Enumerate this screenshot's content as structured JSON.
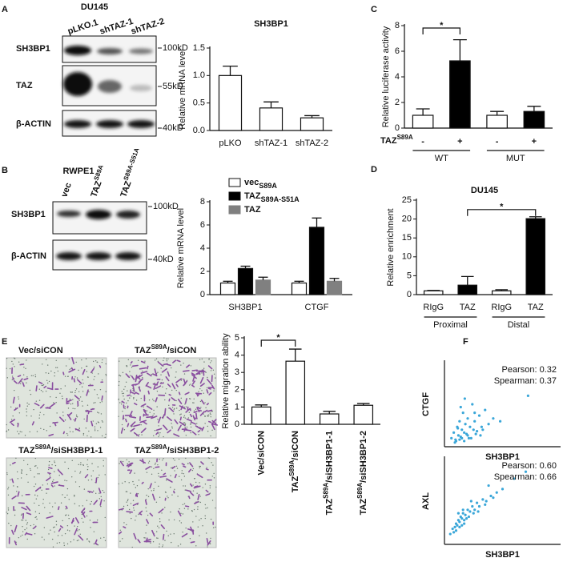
{
  "figure": {
    "letters": [
      "A",
      "B",
      "C",
      "D",
      "E",
      "F"
    ],
    "blot_A": {
      "cell_line": "DU145",
      "lanes": [
        "pLKO.1",
        "shTAZ-1",
        "shTAZ-2"
      ],
      "rows": [
        "SH3BP1",
        "TAZ",
        "β-ACTIN"
      ],
      "markers": [
        "100kD",
        "55kD",
        "40kD"
      ]
    },
    "blot_B": {
      "cell_line": "RWPE1",
      "lanes": [
        [
          "vec"
        ],
        [
          "TAZ",
          "S89A"
        ],
        [
          "TAZ",
          "S89A-S51A"
        ]
      ],
      "rows": [
        "SH3BP1",
        "β-ACTIN"
      ],
      "markers": [
        "100kD",
        "40kD"
      ]
    },
    "micrographs": [
      [
        "Vec/siCON"
      ],
      [
        "TAZ",
        "S89A",
        "/siCON"
      ],
      [
        "TAZ",
        "S89A",
        "/siSH3BP1-1"
      ],
      [
        "TAZ",
        "S89A",
        "/siSH3BP1-2"
      ]
    ]
  },
  "chart_data": [
    {
      "type": "bar",
      "title": "SH3BP1",
      "y_label": "Relative mRNA level",
      "categories": [
        "pLKO",
        "shTAZ-1",
        "shTAZ-2"
      ],
      "values": [
        1.0,
        0.41,
        0.23
      ],
      "errors": [
        0.17,
        0.11,
        0.04
      ],
      "colors": [
        "#ffffff",
        "#ffffff",
        "#ffffff"
      ],
      "ylim": [
        0,
        1.5
      ],
      "yticks": [
        {
          "value": 0,
          "label": "0.0"
        },
        {
          "value": 0.5,
          "label": "0.5"
        },
        {
          "value": 1,
          "label": "1.0"
        },
        {
          "value": 1.5,
          "label": "1.5"
        }
      ]
    },
    {
      "type": "grouped_bar",
      "y_label": "Relative mRNA level",
      "categories": [
        "SH3BP1",
        "CTGF"
      ],
      "series": [
        {
          "name": "vec",
          "subscript": "S89A",
          "color": "#ffffff",
          "values": [
            1.0,
            1.0
          ],
          "errors": [
            0.15,
            0.15
          ]
        },
        {
          "name": "TAZ",
          "subscript": "S89A-S51A",
          "color": "#000000",
          "values": [
            2.25,
            5.8
          ],
          "errors": [
            0.2,
            0.8
          ]
        },
        {
          "name": "TAZ",
          "color": "#808080",
          "values": [
            1.25,
            1.15
          ],
          "errors": [
            0.25,
            0.25
          ]
        }
      ],
      "ylim": [
        0,
        8
      ],
      "yticks": [
        0,
        2,
        4,
        6,
        8
      ]
    },
    {
      "type": "bar",
      "y_label": "Relative luciferase activity",
      "x_label": [
        "TAZ",
        "S89A"
      ],
      "categories": [
        "-",
        "+",
        "-",
        "+"
      ],
      "groups": [
        "WT",
        "MUT"
      ],
      "values": [
        1.0,
        5.25,
        1.0,
        1.3
      ],
      "errors": [
        0.5,
        1.65,
        0.3,
        0.4
      ],
      "colors": [
        "#ffffff",
        "#000000",
        "#ffffff",
        "#000000"
      ],
      "annotation": "*",
      "ylim": [
        0,
        8
      ],
      "yticks": [
        0,
        2,
        4,
        6,
        8
      ]
    },
    {
      "type": "bar",
      "title": "DU145",
      "y_label": "Relative enrichment",
      "categories": [
        "RIgG",
        "TAZ",
        "RIgG",
        "TAZ"
      ],
      "groups": [
        "Proximal",
        "Distal"
      ],
      "values": [
        1.0,
        2.5,
        1.0,
        20.1
      ],
      "errors": [
        0.1,
        2.3,
        0.3,
        0.5
      ],
      "colors": [
        "#ffffff",
        "#000000",
        "#ffffff",
        "#000000"
      ],
      "annotation": "*",
      "ylim": [
        0,
        25
      ],
      "yticks": [
        0,
        5,
        10,
        15,
        20,
        25
      ]
    },
    {
      "type": "bar",
      "y_label": "Relative migration ability",
      "categories": [
        [
          "Vec/siCON"
        ],
        [
          "TAZ",
          "S89A",
          "/siCON"
        ],
        [
          "TAZ",
          "S89A",
          "/siSH3BP1-1"
        ],
        [
          "TAZ",
          "S89A",
          "/siSH3BP1-2"
        ]
      ],
      "values": [
        1.0,
        3.65,
        0.6,
        1.1
      ],
      "errors": [
        0.12,
        0.7,
        0.15,
        0.1
      ],
      "colors": [
        "#ffffff",
        "#ffffff",
        "#ffffff",
        "#ffffff"
      ],
      "annotation": "*",
      "ylim": [
        0,
        5
      ],
      "yticks": [
        0,
        1,
        2,
        3,
        4,
        5
      ]
    },
    {
      "type": "scatter",
      "x_label": "SH3BP1",
      "y_label": "CTGF",
      "annotations": [
        "Pearson: 0.32",
        "Spearman: 0.37"
      ],
      "color": "#3ba7d9",
      "xlim": [
        0,
        1000
      ],
      "ylim": [
        0,
        30000
      ],
      "x": [
        60,
        80,
        95,
        110,
        120,
        130,
        140,
        150,
        160,
        170,
        180,
        190,
        200,
        210,
        220,
        240,
        250,
        260,
        280,
        300,
        320,
        350,
        380,
        420,
        90,
        100,
        130,
        150,
        170,
        200,
        230,
        270,
        310,
        140,
        115,
        175,
        260,
        330,
        480,
        720
      ],
      "values": [
        3000,
        5000,
        2500,
        7000,
        4000,
        9000,
        3500,
        6000,
        12000,
        5000,
        8000,
        4500,
        10000,
        3000,
        7000,
        15000,
        6000,
        9000,
        5500,
        11000,
        7000,
        13000,
        8000,
        10000,
        1500,
        2000,
        2500,
        3000,
        2000,
        4000,
        3000,
        4500,
        4000,
        14000,
        6500,
        17000,
        12000,
        6000,
        9000,
        18000
      ]
    },
    {
      "type": "scatter",
      "x_label": "SH3BP1",
      "y_label": "AXL",
      "annotations": [
        "Pearson: 0.60",
        "Spearman: 0.66"
      ],
      "color": "#3ba7d9",
      "xlim": [
        0,
        1000
      ],
      "ylim": [
        0,
        2500
      ],
      "x": [
        50,
        70,
        80,
        90,
        100,
        110,
        120,
        130,
        140,
        150,
        160,
        170,
        180,
        200,
        220,
        240,
        260,
        280,
        300,
        330,
        360,
        400,
        450,
        500,
        100,
        130,
        150,
        170,
        190,
        210,
        250,
        290,
        350,
        420,
        600,
        120,
        160,
        230,
        380,
        700
      ],
      "values": [
        300,
        450,
        350,
        500,
        600,
        550,
        700,
        650,
        800,
        750,
        900,
        700,
        850,
        1000,
        950,
        1100,
        1000,
        1200,
        1100,
        1300,
        1250,
        1400,
        1500,
        1600,
        400,
        500,
        550,
        600,
        750,
        800,
        900,
        950,
        1150,
        1350,
        1900,
        900,
        1000,
        1250,
        1700,
        2100
      ]
    }
  ]
}
